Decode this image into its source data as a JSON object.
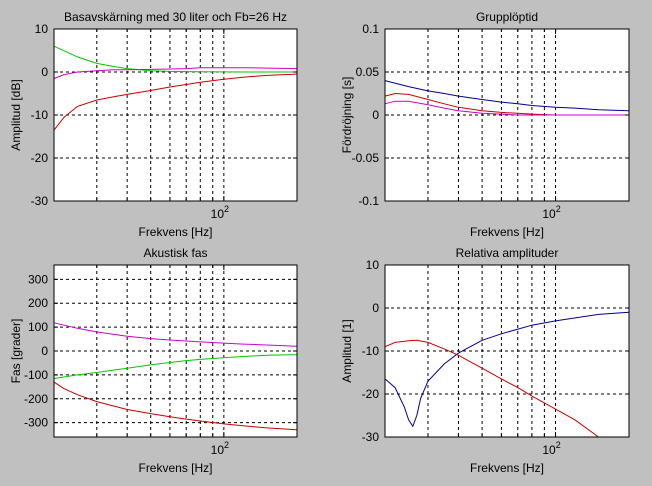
{
  "window": {
    "background_color": "#c0c0c0"
  },
  "chart_data": [
    {
      "type": "line",
      "title": "Basavskärning med 30 liter och Fb=26 Hz",
      "xlabel": "Frekvens [Hz]",
      "ylabel": "Amplitud [dB]",
      "xscale": "log",
      "xlim": [
        20,
        200
      ],
      "ylim": [
        -30,
        10
      ],
      "yticks": [
        -30,
        -20,
        -10,
        0,
        10
      ],
      "xticks": [
        100
      ],
      "xtick_labels": [
        "10^2"
      ],
      "grid": true,
      "series": [
        {
          "color": "#00c800",
          "x": [
            20,
            25,
            30,
            35,
            40,
            45,
            50,
            60,
            70,
            80,
            100,
            120,
            150,
            200
          ],
          "y": [
            6.0,
            3.5,
            2.0,
            1.3,
            0.8,
            0.5,
            0.3,
            0.15,
            0.1,
            0.05,
            0.02,
            0.01,
            0.0,
            0.0
          ]
        },
        {
          "color": "#cc00cc",
          "x": [
            20,
            22,
            25,
            30,
            35,
            40,
            50,
            60,
            70,
            80,
            100,
            120,
            150,
            200
          ],
          "y": [
            -1.5,
            -0.6,
            0.0,
            0.3,
            0.5,
            0.5,
            0.6,
            0.7,
            0.8,
            1.0,
            1.0,
            1.0,
            0.9,
            0.8
          ]
        },
        {
          "color": "#cc0000",
          "x": [
            20,
            22,
            25,
            30,
            35,
            40,
            50,
            60,
            70,
            80,
            100,
            120,
            150,
            200
          ],
          "y": [
            -13.5,
            -10.5,
            -8.0,
            -6.5,
            -5.8,
            -5.2,
            -4.3,
            -3.5,
            -2.9,
            -2.4,
            -1.7,
            -1.2,
            -0.8,
            -0.5
          ]
        }
      ]
    },
    {
      "type": "line",
      "title": "Grupplöptid",
      "xlabel": "Frekvens [Hz]",
      "ylabel": "Fördröjning [s]",
      "xscale": "log",
      "xlim": [
        20,
        200
      ],
      "ylim": [
        -0.1,
        0.1
      ],
      "yticks": [
        -0.1,
        -0.05,
        0,
        0.05,
        0.1
      ],
      "ytick_labels": [
        "-0.1",
        "-0.05",
        "0",
        "0.05",
        "0.1"
      ],
      "xticks": [
        100
      ],
      "xtick_labels": [
        "10^2"
      ],
      "grid": true,
      "series": [
        {
          "color": "#000099",
          "x": [
            20,
            25,
            30,
            35,
            40,
            50,
            60,
            70,
            80,
            100,
            120,
            150,
            200
          ],
          "y": [
            0.04,
            0.033,
            0.028,
            0.025,
            0.022,
            0.018,
            0.015,
            0.013,
            0.011,
            0.009,
            0.008,
            0.006,
            0.005
          ]
        },
        {
          "color": "#cc0000",
          "x": [
            20,
            22,
            25,
            30,
            35,
            40,
            50,
            60,
            70,
            80,
            100,
            150,
            200
          ],
          "y": [
            0.022,
            0.025,
            0.024,
            0.018,
            0.013,
            0.009,
            0.005,
            0.003,
            0.002,
            0.001,
            0.0,
            0.0,
            0.0
          ]
        },
        {
          "color": "#cc00cc",
          "x": [
            20,
            22,
            25,
            30,
            35,
            40,
            50,
            60,
            70,
            80,
            100,
            150,
            200
          ],
          "y": [
            0.013,
            0.016,
            0.016,
            0.012,
            0.008,
            0.005,
            0.002,
            0.001,
            0.0,
            0.0,
            0.0,
            0.0,
            0.0
          ]
        }
      ]
    },
    {
      "type": "line",
      "title": "Akustisk fas",
      "xlabel": "Frekvens [Hz]",
      "ylabel": "Fas [grader]",
      "xscale": "log",
      "xlim": [
        20,
        200
      ],
      "ylim": [
        -360,
        360
      ],
      "yticks": [
        -300,
        -200,
        -100,
        0,
        100,
        200,
        300
      ],
      "xticks": [
        100
      ],
      "xtick_labels": [
        "10^2"
      ],
      "grid": true,
      "series": [
        {
          "color": "#cc00cc",
          "x": [
            20,
            25,
            30,
            35,
            40,
            50,
            60,
            70,
            80,
            100,
            120,
            150,
            200
          ],
          "y": [
            118,
            95,
            80,
            70,
            62,
            52,
            46,
            42,
            38,
            33,
            29,
            25,
            20
          ]
        },
        {
          "color": "#00c800",
          "x": [
            20,
            25,
            30,
            35,
            40,
            50,
            60,
            70,
            80,
            100,
            120,
            150,
            200
          ],
          "y": [
            -115,
            -100,
            -90,
            -80,
            -72,
            -58,
            -48,
            -40,
            -35,
            -28,
            -23,
            -18,
            -15
          ]
        },
        {
          "color": "#cc0000",
          "x": [
            20,
            22,
            25,
            30,
            35,
            40,
            50,
            60,
            70,
            80,
            100,
            120,
            150,
            200
          ],
          "y": [
            -130,
            -158,
            -183,
            -212,
            -230,
            -245,
            -262,
            -275,
            -285,
            -293,
            -305,
            -313,
            -322,
            -330
          ]
        }
      ]
    },
    {
      "type": "line",
      "title": "Relativa amplituder",
      "xlabel": "Frekvens [Hz]",
      "ylabel": "Amplitud [1]",
      "xscale": "log",
      "xlim": [
        20,
        200
      ],
      "ylim": [
        -30,
        10
      ],
      "yticks": [
        -30,
        -20,
        -10,
        0,
        10
      ],
      "xticks": [
        100
      ],
      "xtick_labels": [
        "10^2"
      ],
      "grid": true,
      "series": [
        {
          "color": "#000099",
          "x": [
            20,
            22,
            24,
            25,
            26,
            27,
            28,
            30,
            35,
            40,
            50,
            60,
            80,
            100,
            150,
            200
          ],
          "y": [
            -16.5,
            -18.5,
            -23.0,
            -26.0,
            -27.5,
            -25.0,
            -21.0,
            -17.0,
            -13.0,
            -10.5,
            -7.5,
            -6.0,
            -4.0,
            -3.0,
            -1.5,
            -1.0
          ]
        },
        {
          "color": "#cc0000",
          "x": [
            20,
            22,
            25,
            27,
            30,
            35,
            40,
            50,
            60,
            70,
            80,
            100,
            120,
            150
          ],
          "y": [
            -9.0,
            -8.0,
            -7.6,
            -7.5,
            -8.0,
            -9.5,
            -11.0,
            -14.0,
            -16.5,
            -18.5,
            -20.5,
            -23.5,
            -26.0,
            -30.0
          ]
        }
      ]
    }
  ]
}
